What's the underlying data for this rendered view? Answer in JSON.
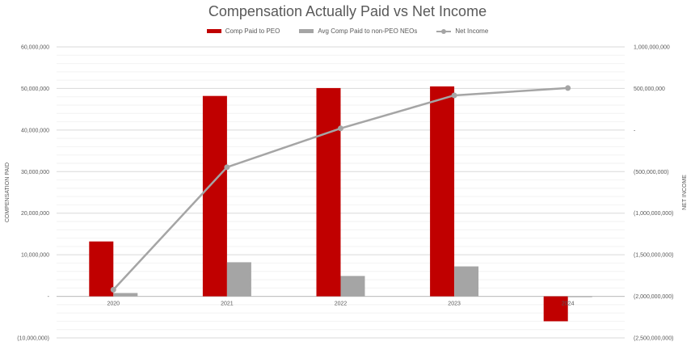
{
  "chart_data": {
    "type": "bar",
    "title": "Compensation Actually Paid vs Net Income",
    "categories": [
      "2020",
      "2021",
      "2022",
      "2023",
      "2024"
    ],
    "series": [
      {
        "name": "Comp Paid to PEO",
        "type": "bar",
        "axis": "left",
        "color": "#C00000",
        "values": [
          13200000,
          48200000,
          50100000,
          50500000,
          -6000000
        ]
      },
      {
        "name": "Avg Comp Paid to non-PEO NEOs",
        "type": "bar",
        "axis": "left",
        "color": "#A5A5A5",
        "values": [
          800000,
          8200000,
          4900000,
          7200000,
          -100000
        ]
      },
      {
        "name": "Net Income",
        "type": "line",
        "axis": "right",
        "color": "#A5A5A5",
        "values": [
          -1920000000,
          -447000000,
          20000000,
          417000000,
          505000000
        ]
      }
    ],
    "ylabel": "COMPENSATION PAID",
    "y2label": "NET INCOME",
    "ylim": [
      -10000000,
      60000000
    ],
    "y2lim": [
      -2500000000,
      1000000000
    ],
    "yticks": [
      "60,000,000",
      "50,000,000",
      "40,000,000",
      "30,000,000",
      "20,000,000",
      "10,000,000",
      "-",
      "(10,000,000)"
    ],
    "y2ticks": [
      "1,000,000,000",
      "500,000,000",
      "-",
      "(500,000,000)",
      "(1,000,000,000)",
      "(1,500,000,000)",
      "(2,000,000,000)",
      "(2,500,000,000)"
    ],
    "grid": true,
    "legend_position": "top"
  },
  "legend": {
    "peo": "Comp Paid to PEO",
    "neo": "Avg Comp Paid to non-PEO NEOs",
    "net": "Net Income"
  }
}
